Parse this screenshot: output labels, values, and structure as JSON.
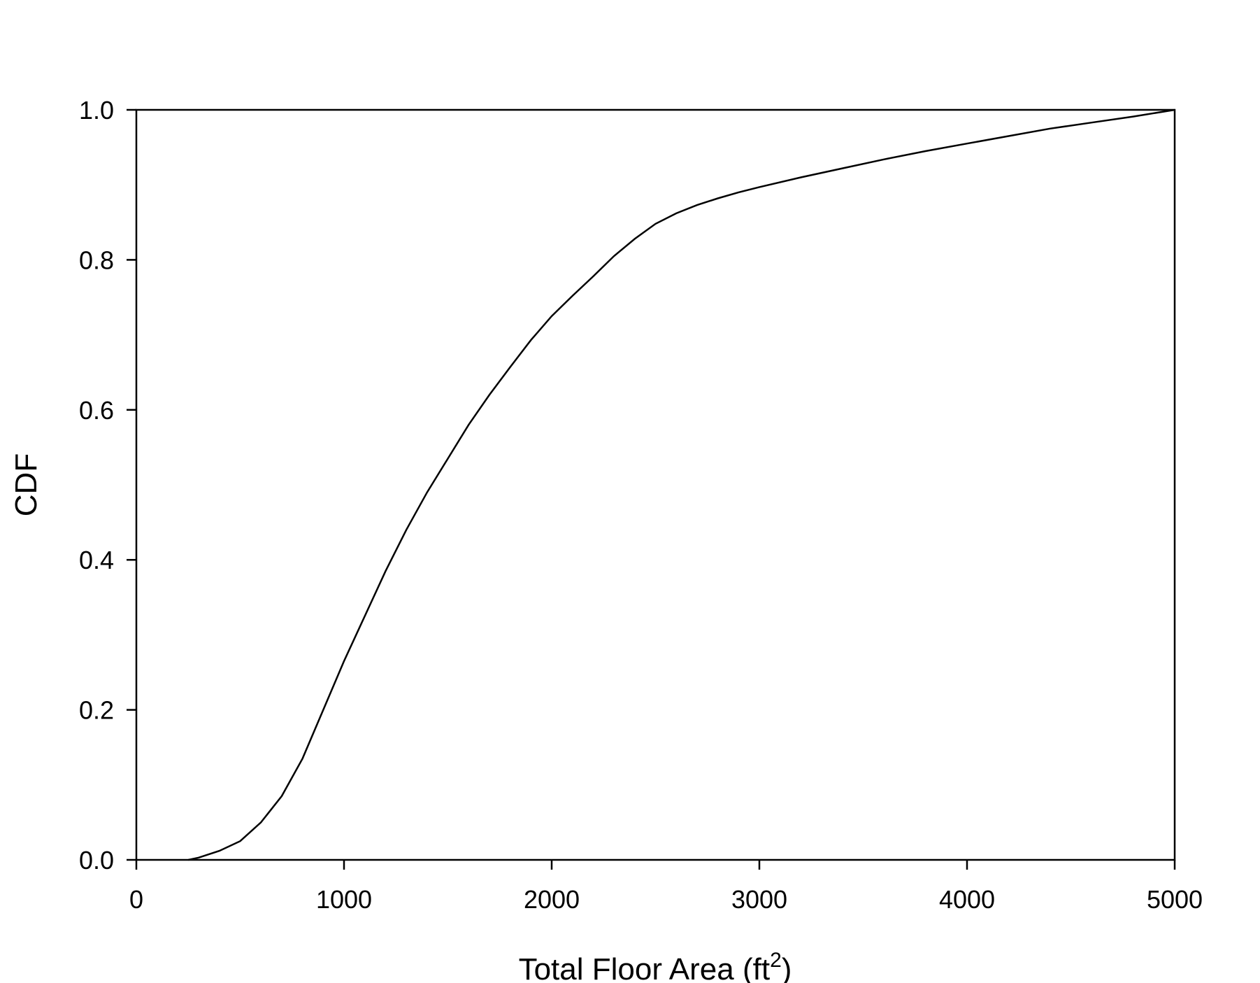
{
  "chart_data": {
    "type": "line",
    "xlabel": "Total Floor Area (ft",
    "xlabel_superscript": "2",
    "xlabel_suffix": ")",
    "ylabel": "CDF",
    "xlim": [
      0,
      5000
    ],
    "ylim": [
      0,
      1.0
    ],
    "x_ticks": [
      0,
      1000,
      2000,
      3000,
      4000,
      5000
    ],
    "x_tick_labels": [
      "0",
      "1000",
      "2000",
      "3000",
      "4000",
      "5000"
    ],
    "y_ticks": [
      0,
      0.2,
      0.4,
      0.6,
      0.8,
      1.0
    ],
    "y_tick_labels": [
      "0.0",
      "0.2",
      "0.4",
      "0.6",
      "0.8",
      "1.0"
    ],
    "grid": false,
    "line_color": "#000000",
    "series": [
      {
        "x": [
          250,
          300,
          400,
          500,
          600,
          700,
          800,
          900,
          1000,
          1100,
          1200,
          1300,
          1400,
          1500,
          1600,
          1700,
          1800,
          1900,
          2000,
          2100,
          2200,
          2300,
          2400,
          2500,
          2600,
          2700,
          2800,
          2900,
          3000,
          3200,
          3400,
          3600,
          3800,
          4000,
          4200,
          4400,
          4600,
          4800,
          5000
        ],
        "y": [
          0.0,
          0.003,
          0.012,
          0.025,
          0.05,
          0.085,
          0.135,
          0.2,
          0.265,
          0.325,
          0.385,
          0.44,
          0.49,
          0.535,
          0.58,
          0.62,
          0.657,
          0.693,
          0.725,
          0.752,
          0.778,
          0.805,
          0.828,
          0.848,
          0.862,
          0.873,
          0.882,
          0.89,
          0.897,
          0.91,
          0.922,
          0.934,
          0.945,
          0.955,
          0.965,
          0.975,
          0.983,
          0.991,
          1.0
        ]
      }
    ]
  }
}
